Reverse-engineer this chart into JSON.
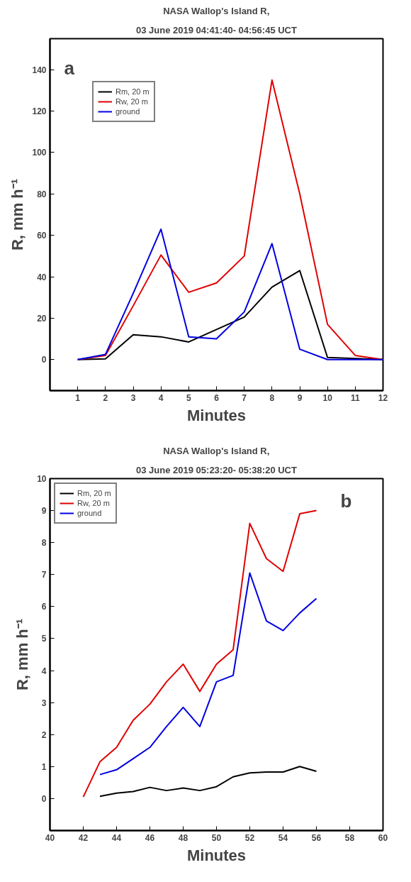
{
  "chart_data": [
    {
      "type": "line",
      "title": "NASA Wallop's Island R,",
      "subtitle": "03 June 2019 04:41:40- 04:56:45 UCT",
      "xlabel": "Minutes",
      "ylabel": "R, mm h⁻¹",
      "annotations": [
        "a"
      ],
      "x": [
        1,
        2,
        3,
        4,
        5,
        6,
        7,
        8,
        9,
        10,
        11,
        12
      ],
      "xlim": [
        0,
        12
      ],
      "xticks": [
        1,
        2,
        3,
        4,
        5,
        6,
        7,
        8,
        9,
        10,
        11,
        12
      ],
      "ylim": [
        -15,
        155
      ],
      "yticks": [
        0,
        20,
        40,
        60,
        80,
        100,
        120,
        140
      ],
      "legend": "top left",
      "grid": false,
      "series": [
        {
          "name": "Rm, 20 m",
          "color": "#000000",
          "values": [
            0,
            0.3,
            12,
            11,
            8.5,
            14.5,
            20.5,
            35,
            43,
            1,
            0.5,
            0
          ]
        },
        {
          "name": "Rw, 20 m",
          "color": "#e00000",
          "values": [
            0,
            2,
            26,
            50.5,
            32.5,
            37,
            50,
            135,
            80,
            17,
            2,
            0
          ]
        },
        {
          "name": "ground",
          "color": "#0000e0",
          "values": [
            0,
            2.5,
            32,
            63,
            11,
            10,
            23,
            56,
            5,
            0,
            0,
            0
          ]
        }
      ]
    },
    {
      "type": "line",
      "title": "NASA Wallop's Island R,",
      "subtitle": "03 June 2019 05:23:20- 05:38:20 UCT",
      "xlabel": "Minutes",
      "ylabel": "R, mm h⁻¹",
      "annotations": [
        "b"
      ],
      "xlim": [
        40,
        60
      ],
      "xticks": [
        40,
        42,
        44,
        46,
        48,
        50,
        52,
        54,
        56,
        58,
        60
      ],
      "ylim": [
        -1,
        10
      ],
      "yticks": [
        0,
        1,
        2,
        3,
        4,
        5,
        6,
        7,
        8,
        9,
        10
      ],
      "legend": "top left",
      "grid": false,
      "series": [
        {
          "name": "Rm, 20 m",
          "color": "#000000",
          "x": [
            43,
            44,
            45,
            46,
            47,
            48,
            49,
            50,
            51,
            52,
            53,
            54,
            55,
            56
          ],
          "values": [
            0.07,
            0.17,
            0.22,
            0.35,
            0.25,
            0.33,
            0.25,
            0.37,
            0.68,
            0.8,
            0.83,
            0.83,
            1.0,
            0.85
          ]
        },
        {
          "name": "Rw, 20 m",
          "color": "#e00000",
          "x": [
            42,
            43,
            44,
            45,
            46,
            47,
            48,
            49,
            50,
            51,
            52,
            53,
            54,
            55,
            56
          ],
          "values": [
            0.05,
            1.15,
            1.6,
            2.45,
            2.95,
            3.65,
            4.2,
            3.35,
            4.2,
            4.65,
            8.6,
            7.5,
            7.1,
            8.9,
            9.0
          ]
        },
        {
          "name": "ground",
          "color": "#0000e0",
          "x": [
            43,
            44,
            45,
            46,
            47,
            48,
            49,
            50,
            51,
            52,
            53,
            54,
            55,
            56
          ],
          "values": [
            0.75,
            0.9,
            1.25,
            1.6,
            2.25,
            2.85,
            2.25,
            3.65,
            3.85,
            7.05,
            5.55,
            5.25,
            5.8,
            6.25
          ]
        }
      ]
    }
  ]
}
